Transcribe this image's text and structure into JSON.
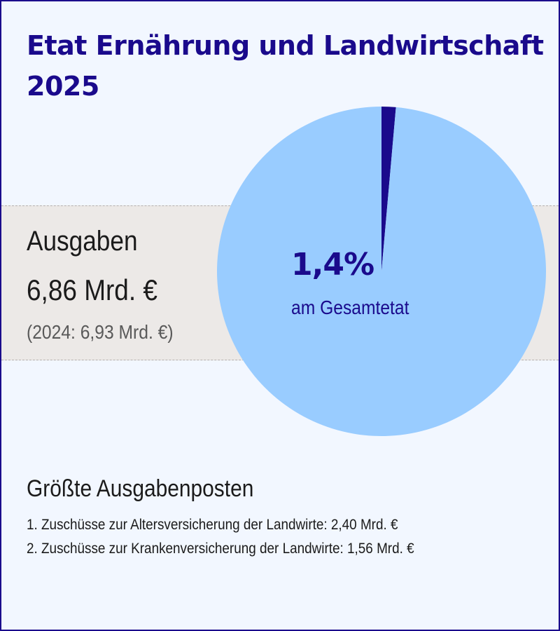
{
  "title": "Etat Ernährung und Landwirtschaft 2025",
  "expenses": {
    "label": "Ausgaben",
    "value": "6,86 Mrd. €",
    "previous": "(2024: 6,93 Mrd. €)"
  },
  "share": {
    "percent_text": "1,4%",
    "label": "am Gesamtetat"
  },
  "largest": {
    "title": "Größte Ausgabenposten",
    "items": [
      "1. Zuschüsse zur Altersversicherung der Landwirte: 2,40 Mrd. €",
      "2. Zuschüsse zur Krankenversicherung der Landwirte: 1,56 Mrd. €"
    ]
  },
  "colors": {
    "accent": "#1a0a8c",
    "pie_rest": "#99ccff",
    "band": "#ece9e7",
    "background": "#f2f7ff"
  },
  "chart_data": {
    "type": "pie",
    "slices": [
      {
        "value": 1.4,
        "color": "#1a0a8c"
      },
      {
        "value": 98.6,
        "color": "#99ccff"
      }
    ]
  }
}
